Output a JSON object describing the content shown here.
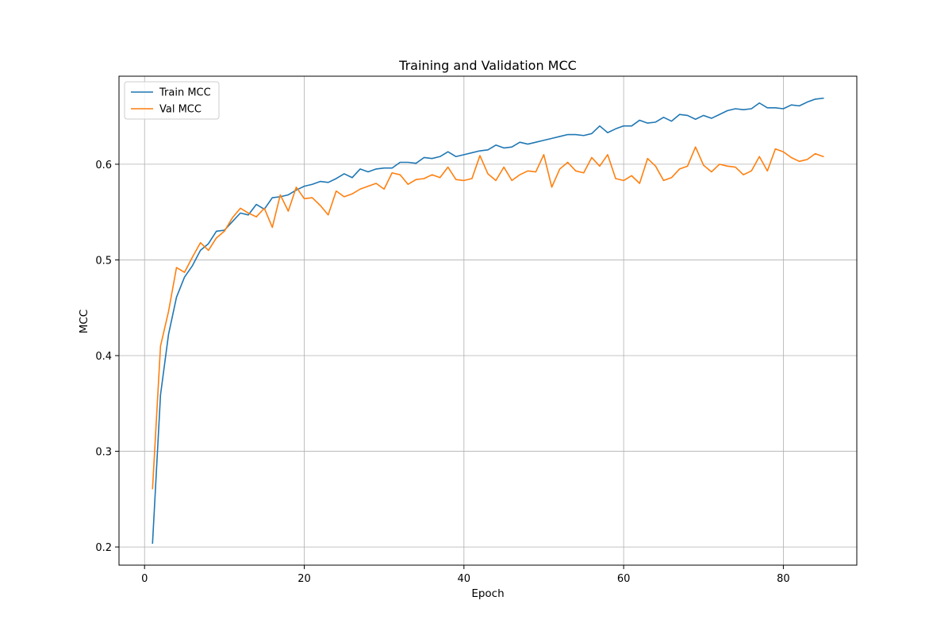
{
  "chart_data": {
    "type": "line",
    "title": "Training and Validation MCC",
    "xlabel": "Epoch",
    "ylabel": "MCC",
    "xlim": [
      -3.2,
      89.2
    ],
    "ylim": [
      0.181,
      0.692
    ],
    "xticks": [
      0,
      20,
      40,
      60,
      80
    ],
    "yticks": [
      0.2,
      0.3,
      0.4,
      0.5,
      0.6
    ],
    "ytick_labels": [
      "0.2",
      "0.3",
      "0.4",
      "0.5",
      "0.6"
    ],
    "grid": true,
    "legend_position": "upper-left",
    "x": [
      1,
      2,
      3,
      4,
      5,
      6,
      7,
      8,
      9,
      10,
      11,
      12,
      13,
      14,
      15,
      16,
      17,
      18,
      19,
      20,
      21,
      22,
      23,
      24,
      25,
      26,
      27,
      28,
      29,
      30,
      31,
      32,
      33,
      34,
      35,
      36,
      37,
      38,
      39,
      40,
      41,
      42,
      43,
      44,
      45,
      46,
      47,
      48,
      49,
      50,
      51,
      52,
      53,
      54,
      55,
      56,
      57,
      58,
      59,
      60,
      61,
      62,
      63,
      64,
      65,
      66,
      67,
      68,
      69,
      70,
      71,
      72,
      73,
      74,
      75,
      76,
      77,
      78,
      79,
      80,
      81,
      82,
      83,
      84,
      85
    ],
    "series": [
      {
        "name": "Train MCC",
        "color": "#1f77b4",
        "values": [
          0.204,
          0.359,
          0.422,
          0.461,
          0.482,
          0.494,
          0.51,
          0.517,
          0.53,
          0.531,
          0.54,
          0.549,
          0.547,
          0.558,
          0.553,
          0.565,
          0.566,
          0.568,
          0.573,
          0.577,
          0.579,
          0.582,
          0.581,
          0.585,
          0.59,
          0.586,
          0.595,
          0.592,
          0.595,
          0.596,
          0.596,
          0.602,
          0.602,
          0.601,
          0.607,
          0.606,
          0.608,
          0.613,
          0.608,
          0.61,
          0.612,
          0.614,
          0.615,
          0.62,
          0.617,
          0.618,
          0.623,
          0.621,
          0.623,
          0.625,
          0.627,
          0.629,
          0.631,
          0.631,
          0.63,
          0.632,
          0.64,
          0.633,
          0.637,
          0.64,
          0.64,
          0.646,
          0.643,
          0.644,
          0.649,
          0.645,
          0.652,
          0.651,
          0.647,
          0.651,
          0.648,
          0.652,
          0.656,
          0.658,
          0.657,
          0.658,
          0.664,
          0.659,
          0.659,
          0.658,
          0.662,
          0.661,
          0.665,
          0.668,
          0.669
        ]
      },
      {
        "name": "Val MCC",
        "color": "#ff7f0e",
        "values": [
          0.261,
          0.41,
          0.446,
          0.492,
          0.487,
          0.503,
          0.518,
          0.51,
          0.523,
          0.53,
          0.544,
          0.554,
          0.549,
          0.545,
          0.554,
          0.534,
          0.568,
          0.551,
          0.576,
          0.564,
          0.565,
          0.557,
          0.547,
          0.572,
          0.566,
          0.569,
          0.574,
          0.577,
          0.58,
          0.574,
          0.591,
          0.589,
          0.579,
          0.584,
          0.585,
          0.589,
          0.586,
          0.597,
          0.584,
          0.583,
          0.585,
          0.609,
          0.59,
          0.583,
          0.597,
          0.583,
          0.589,
          0.593,
          0.592,
          0.61,
          0.576,
          0.595,
          0.602,
          0.593,
          0.591,
          0.607,
          0.598,
          0.61,
          0.585,
          0.583,
          0.588,
          0.58,
          0.606,
          0.598,
          0.583,
          0.586,
          0.595,
          0.598,
          0.618,
          0.599,
          0.592,
          0.6,
          0.598,
          0.597,
          0.589,
          0.593,
          0.608,
          0.593,
          0.616,
          0.613,
          0.607,
          0.603,
          0.605,
          0.611,
          0.608
        ]
      }
    ]
  }
}
